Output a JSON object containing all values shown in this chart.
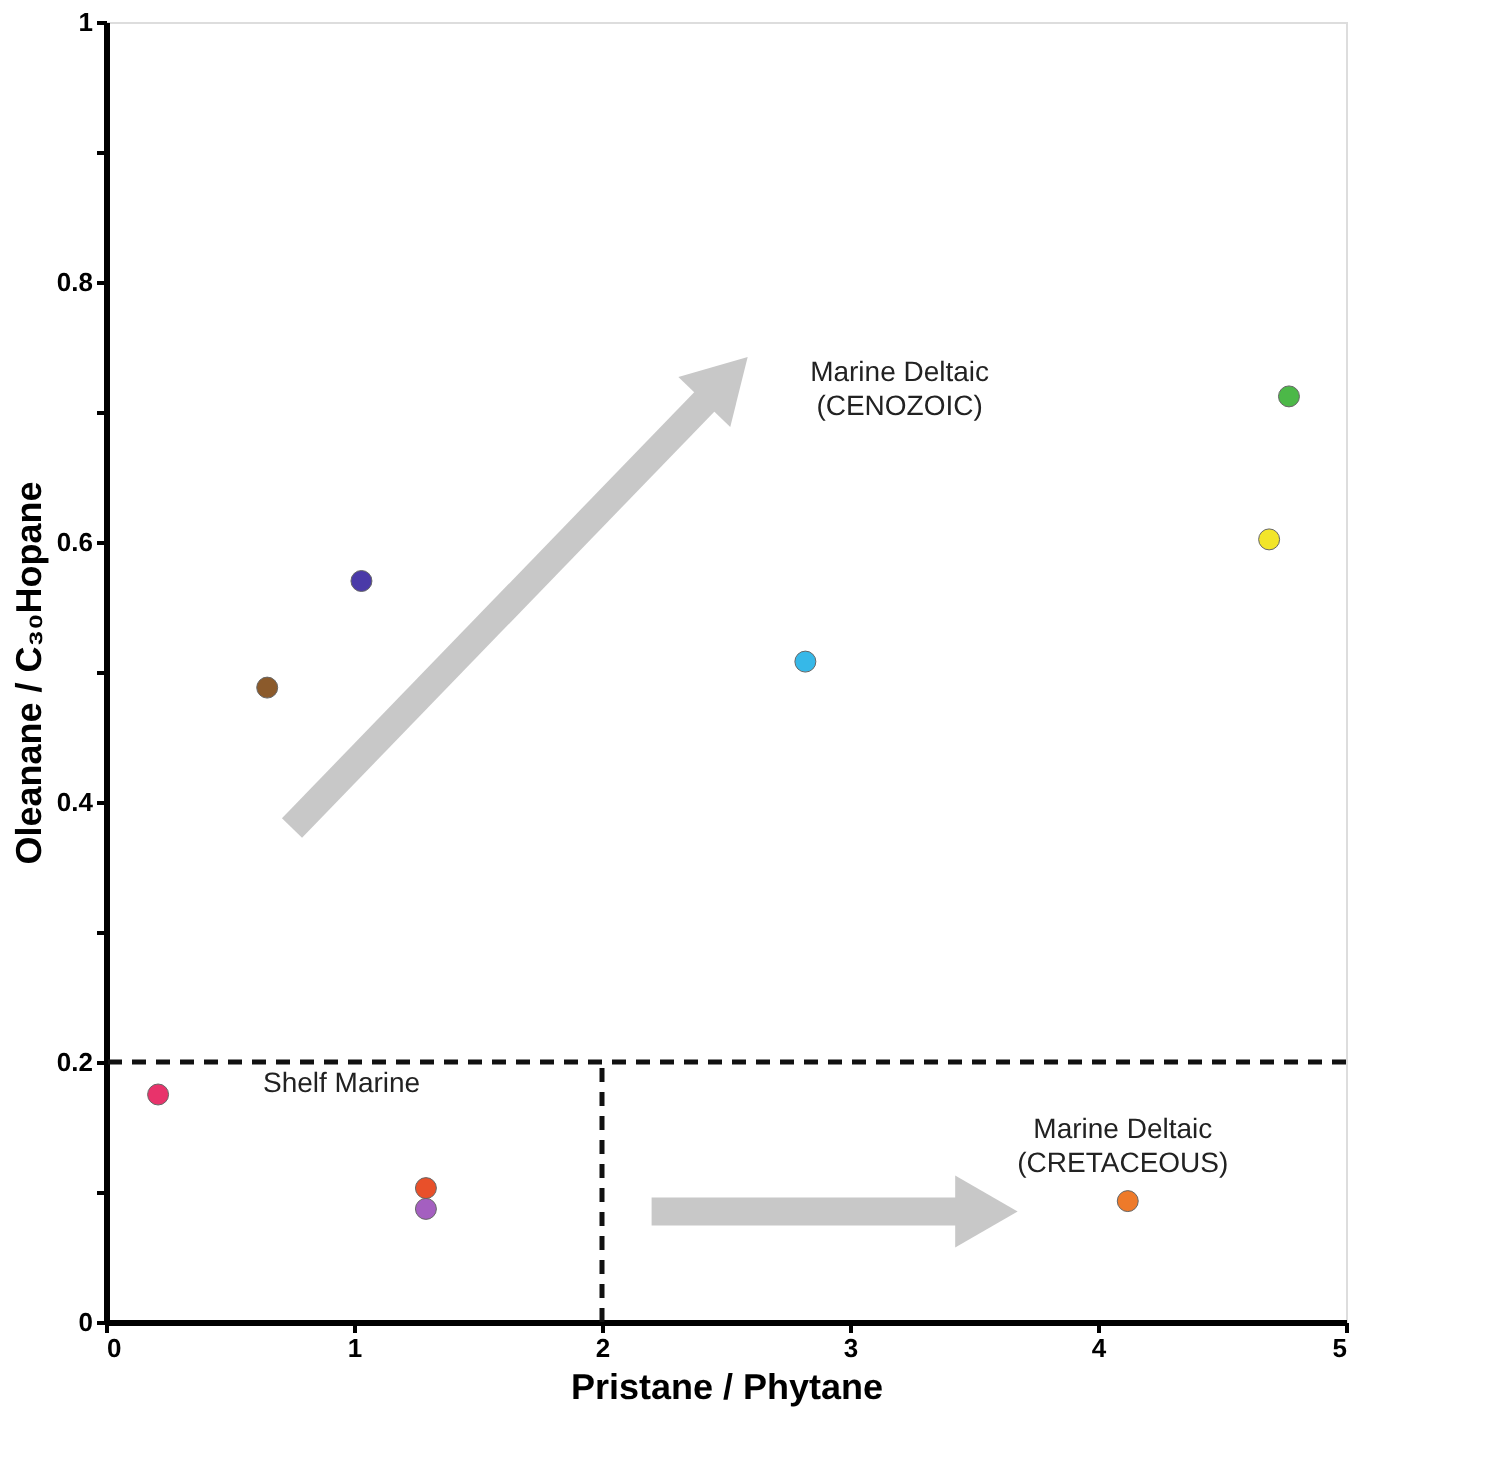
{
  "chart_data": {
    "type": "scatter",
    "xlabel": "Pristane / Phytane",
    "ylabel": "Oleanane / C₃₀Hopane",
    "x": [
      0.21,
      0.65,
      1.03,
      1.29,
      1.29,
      2.82,
      4.12,
      4.69,
      4.77
    ],
    "values": [
      0.175,
      0.488,
      0.57,
      0.103,
      0.087,
      0.508,
      0.093,
      0.602,
      0.712
    ],
    "colors": [
      "#e8336b",
      "#8b5a2b",
      "#4a3aa8",
      "#e8502a",
      "#a45fc0",
      "#36b8e8",
      "#ee7a2a",
      "#f2e52a",
      "#4cb848"
    ],
    "marker": "circle",
    "grid": false,
    "legend": false,
    "xlim": [
      0,
      5
    ],
    "xticks": [
      0,
      1,
      2,
      3,
      4,
      5
    ],
    "ylim": [
      0,
      1
    ],
    "yticks": [
      0,
      {
        "value": 0.1,
        "label": null
      },
      0.2,
      {
        "value": 0.3,
        "label": null
      },
      0.4,
      {
        "value": 0.5,
        "label": null
      },
      0.6,
      {
        "value": 0.7,
        "label": null
      },
      0.8,
      {
        "value": 0.9,
        "label": null
      },
      1
    ],
    "ref_lines": [
      {
        "axis": "y",
        "value": 0.2,
        "label": null,
        "line_style": "dashed",
        "color": "#111111"
      },
      {
        "axis": "x",
        "value": 2,
        "label": null,
        "line_style": "dashed",
        "color": "#111111"
      }
    ],
    "annotations": [
      "Marine Deltaic\n(CENOZOIC)",
      "Shelf Marine",
      "Marine Deltaic\n(CRETACEOUS)"
    ]
  }
}
